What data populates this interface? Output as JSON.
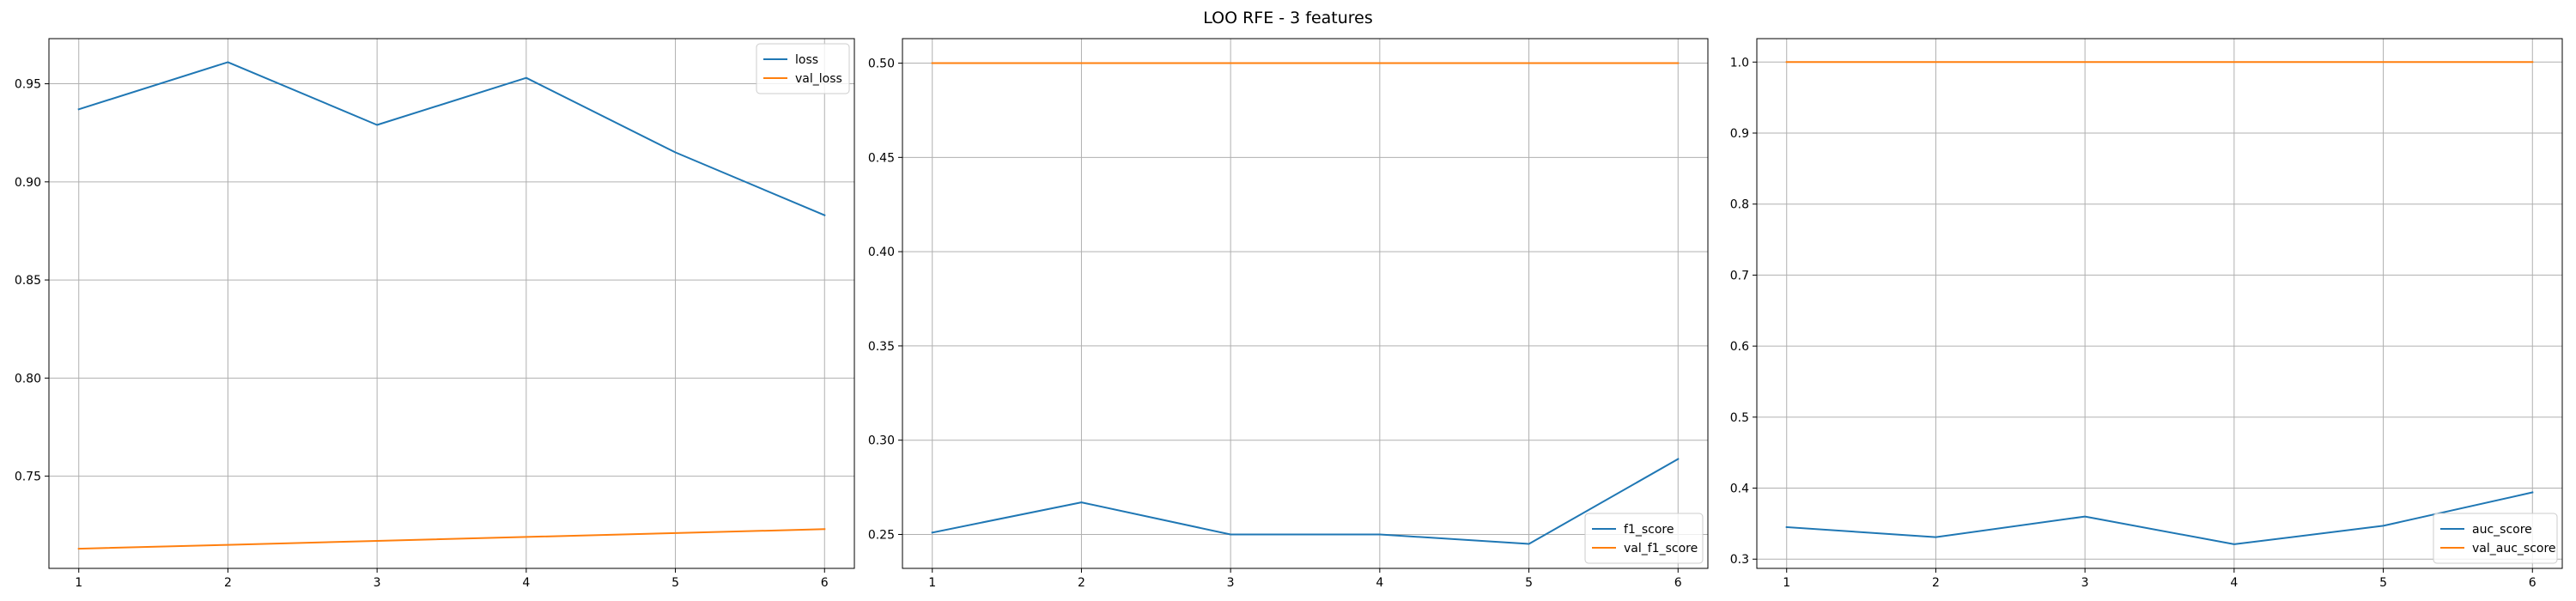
{
  "figure": {
    "suptitle": "LOO RFE - 3 features"
  },
  "chart_data": [
    {
      "type": "line",
      "x": [
        1,
        2,
        3,
        4,
        5,
        6
      ],
      "series": [
        {
          "name": "loss",
          "color": "#1f77b4",
          "values": [
            0.937,
            0.961,
            0.929,
            0.953,
            0.915,
            0.883
          ]
        },
        {
          "name": "val_loss",
          "color": "#ff7f0e",
          "values": [
            0.713,
            0.715,
            0.717,
            0.719,
            0.721,
            0.723
          ]
        }
      ],
      "xlim": [
        0.8,
        6.2
      ],
      "ylim": [
        0.703,
        0.973
      ],
      "xticks": [
        1,
        2,
        3,
        4,
        5,
        6
      ],
      "yticks": [
        0.75,
        0.8,
        0.85,
        0.9,
        0.95
      ],
      "ytick_labels": [
        "0.75",
        "0.80",
        "0.85",
        "0.90",
        "0.95"
      ],
      "grid": true,
      "legend": "upper right"
    },
    {
      "type": "line",
      "x": [
        1,
        2,
        3,
        4,
        5,
        6
      ],
      "series": [
        {
          "name": "f1_score",
          "color": "#1f77b4",
          "values": [
            0.251,
            0.267,
            0.25,
            0.25,
            0.245,
            0.29
          ]
        },
        {
          "name": "val_f1_score",
          "color": "#ff7f0e",
          "values": [
            0.5,
            0.5,
            0.5,
            0.5,
            0.5,
            0.5
          ]
        }
      ],
      "xlim": [
        0.8,
        6.2
      ],
      "ylim": [
        0.232,
        0.513
      ],
      "xticks": [
        1,
        2,
        3,
        4,
        5,
        6
      ],
      "yticks": [
        0.25,
        0.3,
        0.35,
        0.4,
        0.45,
        0.5
      ],
      "ytick_labels": [
        "0.25",
        "0.30",
        "0.35",
        "0.40",
        "0.45",
        "0.50"
      ],
      "grid": true,
      "legend": "lower right"
    },
    {
      "type": "line",
      "x": [
        1,
        2,
        3,
        4,
        5,
        6
      ],
      "series": [
        {
          "name": "auc_score",
          "color": "#1f77b4",
          "values": [
            0.345,
            0.331,
            0.36,
            0.321,
            0.347,
            0.394
          ]
        },
        {
          "name": "val_auc_score",
          "color": "#ff7f0e",
          "values": [
            1.0,
            1.0,
            1.0,
            1.0,
            1.0,
            1.0
          ]
        }
      ],
      "xlim": [
        0.8,
        6.2
      ],
      "ylim": [
        0.287,
        1.033
      ],
      "xticks": [
        1,
        2,
        3,
        4,
        5,
        6
      ],
      "yticks": [
        0.3,
        0.4,
        0.5,
        0.6,
        0.7,
        0.8,
        0.9,
        1.0
      ],
      "ytick_labels": [
        "0.3",
        "0.4",
        "0.5",
        "0.6",
        "0.7",
        "0.8",
        "0.9",
        "1.0"
      ],
      "grid": true,
      "legend": "lower right"
    }
  ]
}
